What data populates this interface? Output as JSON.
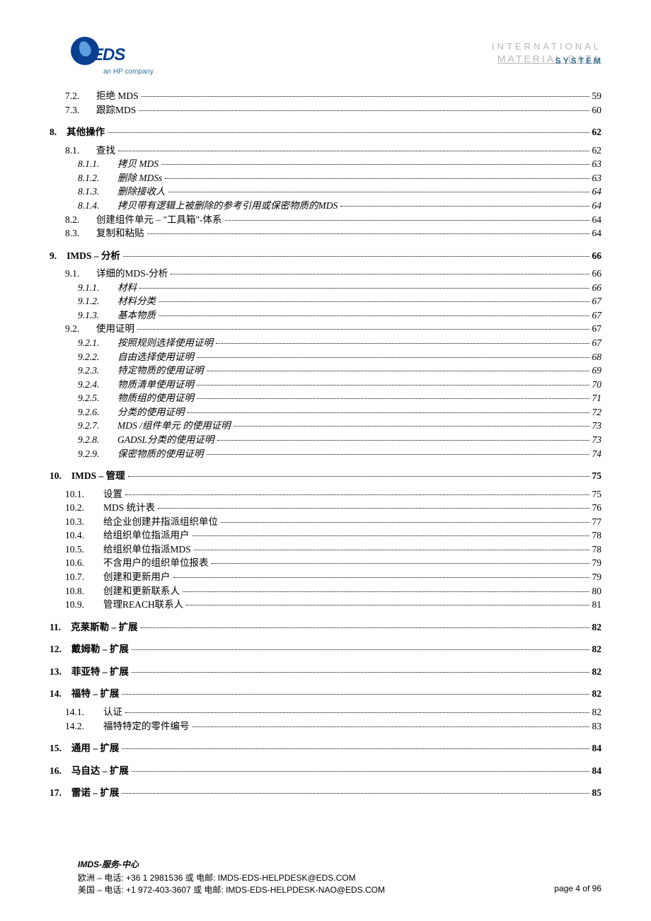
{
  "header": {
    "logo_tagline": "an HP company",
    "right_line1": "INTERNATIONAL",
    "right_line2": "MATERIAL",
    "right_line2_suffix": "DATA",
    "right_overlay": "SYSTEM"
  },
  "toc": [
    {
      "level": 2,
      "num": "7.2.",
      "title": "拒绝 MDS",
      "page": "59",
      "wide": false
    },
    {
      "level": 2,
      "num": "7.3.",
      "title": "跟踪MDS",
      "page": "60",
      "wide": false
    },
    {
      "level": 1,
      "num": "8.",
      "title": "其他操作",
      "page": "62",
      "wide": false
    },
    {
      "level": 2,
      "num": "8.1.",
      "title": "查找",
      "page": "62",
      "wide": false
    },
    {
      "level": 3,
      "num": "8.1.1.",
      "title": "拷贝 MDS",
      "page": "63",
      "wide": false
    },
    {
      "level": 3,
      "num": "8.1.2.",
      "title": "删除 MDSs",
      "page": "63",
      "wide": false
    },
    {
      "level": 3,
      "num": "8.1.3.",
      "title": "删除接收人",
      "page": "64",
      "wide": false
    },
    {
      "level": 3,
      "num": "8.1.4.",
      "title": "拷贝带有逻辑上被删除的参考引用或保密物质的MDS",
      "page": "64",
      "wide": false
    },
    {
      "level": 2,
      "num": "8.2.",
      "title": "创建组件单元 – \"工具箱\"-体系",
      "page": "64",
      "wide": false
    },
    {
      "level": 2,
      "num": "8.3.",
      "title": "复制和粘贴",
      "page": "64",
      "wide": false
    },
    {
      "level": 1,
      "num": "9.",
      "title": "IMDS – 分析",
      "page": "66",
      "wide": false
    },
    {
      "level": 2,
      "num": "9.1.",
      "title": "详细的MDS-分析",
      "page": "66",
      "wide": false
    },
    {
      "level": 3,
      "num": "9.1.1.",
      "title": "材料",
      "page": "66",
      "wide": false
    },
    {
      "level": 3,
      "num": "9.1.2.",
      "title": "材料分类",
      "page": "67",
      "wide": false
    },
    {
      "level": 3,
      "num": "9.1.3.",
      "title": "基本物质",
      "page": "67",
      "wide": false
    },
    {
      "level": 2,
      "num": "9.2.",
      "title": "使用证明",
      "page": "67",
      "wide": false
    },
    {
      "level": 3,
      "num": "9.2.1.",
      "title": "按照规则选择使用证明",
      "page": "67",
      "wide": false
    },
    {
      "level": 3,
      "num": "9.2.2.",
      "title": "自由选择使用证明",
      "page": "68",
      "wide": false
    },
    {
      "level": 3,
      "num": "9.2.3.",
      "title": "特定物质的使用证明",
      "page": "69",
      "wide": false
    },
    {
      "level": 3,
      "num": "9.2.4.",
      "title": "物质清单使用证明",
      "page": "70",
      "wide": false
    },
    {
      "level": 3,
      "num": "9.2.5.",
      "title": "物质组的使用证明",
      "page": "71",
      "wide": false
    },
    {
      "level": 3,
      "num": "9.2.6.",
      "title": "分类的使用证明",
      "page": "72",
      "wide": false
    },
    {
      "level": 3,
      "num": "9.2.7.",
      "title": "MDS /组件单元 的使用证明",
      "page": "73",
      "wide": false
    },
    {
      "level": 3,
      "num": "9.2.8.",
      "title": "GADSL分类的使用证明",
      "page": "73",
      "wide": false
    },
    {
      "level": 3,
      "num": "9.2.9.",
      "title": "保密物质的使用证明",
      "page": "74",
      "wide": false
    },
    {
      "level": 1,
      "num": "10.",
      "title": "IMDS – 管理",
      "page": "75",
      "wide": false
    },
    {
      "level": 2,
      "num": "10.1.",
      "title": "设置",
      "page": "75",
      "wide": true
    },
    {
      "level": 2,
      "num": "10.2.",
      "title": "MDS 统计表",
      "page": "76",
      "wide": true
    },
    {
      "level": 2,
      "num": "10.3.",
      "title": "给企业创建并指派组织单位",
      "page": "77",
      "wide": true
    },
    {
      "level": 2,
      "num": "10.4.",
      "title": "给组织单位指派用户",
      "page": "78",
      "wide": true
    },
    {
      "level": 2,
      "num": "10.5.",
      "title": "给组织单位指派MDS",
      "page": "78",
      "wide": true
    },
    {
      "level": 2,
      "num": "10.6.",
      "title": "不含用户的组织单位报表",
      "page": "79",
      "wide": true
    },
    {
      "level": 2,
      "num": "10.7.",
      "title": "创建和更新用户",
      "page": "79",
      "wide": true
    },
    {
      "level": 2,
      "num": "10.8.",
      "title": "创建和更新联系人",
      "page": "80",
      "wide": true
    },
    {
      "level": 2,
      "num": "10.9.",
      "title": "管理REACH联系人",
      "page": "81",
      "wide": true
    },
    {
      "level": 1,
      "num": "11.",
      "title": "克莱斯勒 – 扩展",
      "page": "82",
      "wide": false
    },
    {
      "level": 1,
      "num": "12.",
      "title": "戴姆勒  – 扩展",
      "page": "82",
      "wide": false
    },
    {
      "level": 1,
      "num": "13.",
      "title": "菲亚特  – 扩展",
      "page": "82",
      "wide": false
    },
    {
      "level": 1,
      "num": "14.",
      "title": "福特 –  扩展",
      "page": "82",
      "wide": false
    },
    {
      "level": 2,
      "num": "14.1.",
      "title": "认证",
      "page": "82",
      "wide": true
    },
    {
      "level": 2,
      "num": "14.2.",
      "title": "福特特定的零件编号",
      "page": "83",
      "wide": true
    },
    {
      "level": 1,
      "num": "15.",
      "title": "通用 –  扩展",
      "page": "84",
      "wide": false
    },
    {
      "level": 1,
      "num": "16.",
      "title": "马自达 –  扩展",
      "page": "84",
      "wide": false
    },
    {
      "level": 1,
      "num": "17.",
      "title": "雷诺 –  扩展",
      "page": "85",
      "wide": false
    }
  ],
  "footer": {
    "title_prefix": "IMDS-",
    "title_mid": "服务-",
    "title_suffix": "中心",
    "line1": "欧洲 – 电话: +36 1 2981536    或  电邮: IMDS-EDS-HELPDESK@EDS.COM",
    "line2": "美国 – 电话: +1 972-403-3607 或  电邮: IMDS-EDS-HELPDESK-NAO@EDS.COM",
    "page_label": "page 4 of 96"
  }
}
